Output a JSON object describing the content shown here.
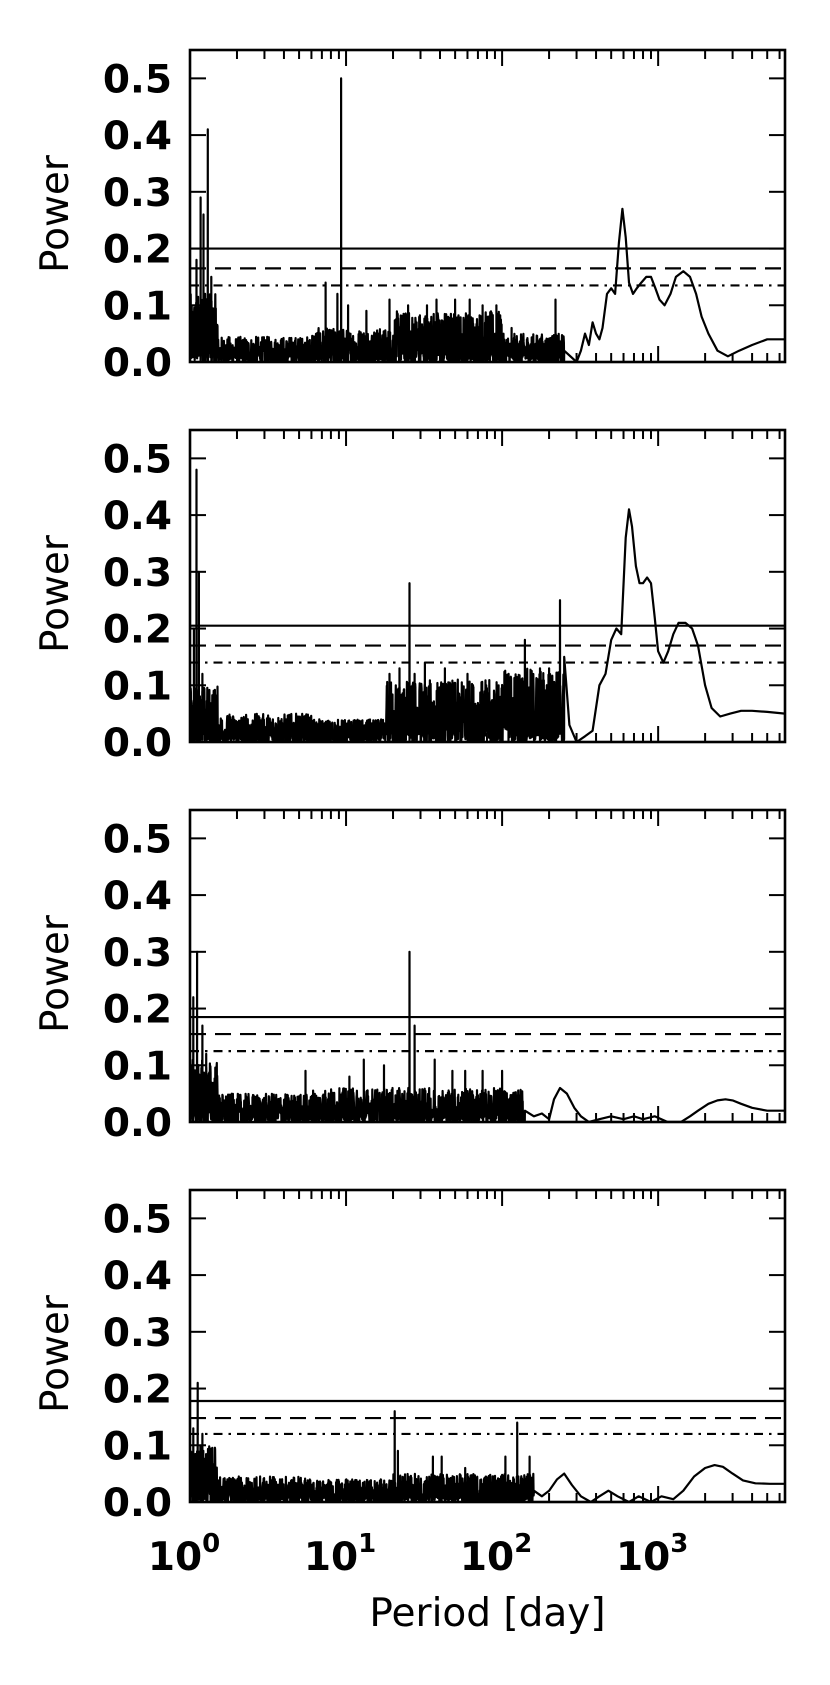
{
  "chart_data": [
    {
      "type": "line",
      "panel": 1,
      "ylabel": "Power",
      "xscale": "log",
      "xlim": [
        1,
        6500
      ],
      "ylim": [
        0,
        0.55
      ],
      "yticks": [
        "0.0",
        "0.1",
        "0.2",
        "0.3",
        "0.4",
        "0.5"
      ],
      "thresholds": [
        {
          "style": "solid",
          "value": 0.2
        },
        {
          "style": "dashed",
          "value": 0.165
        },
        {
          "style": "dashdot",
          "value": 0.135
        }
      ],
      "peaks": [
        {
          "x": 1.1,
          "y": 0.18
        },
        {
          "x": 1.17,
          "y": 0.29
        },
        {
          "x": 1.22,
          "y": 0.26
        },
        {
          "x": 1.25,
          "y": 0.12
        },
        {
          "x": 1.3,
          "y": 0.41
        },
        {
          "x": 1.37,
          "y": 0.15
        },
        {
          "x": 7.4,
          "y": 0.14
        },
        {
          "x": 8.8,
          "y": 0.12
        },
        {
          "x": 9.3,
          "y": 0.5
        },
        {
          "x": 10.3,
          "y": 0.1
        },
        {
          "x": 13.5,
          "y": 0.09
        },
        {
          "x": 19,
          "y": 0.11
        },
        {
          "x": 25,
          "y": 0.1
        },
        {
          "x": 33,
          "y": 0.1
        },
        {
          "x": 38,
          "y": 0.11
        },
        {
          "x": 50,
          "y": 0.11
        },
        {
          "x": 62,
          "y": 0.11
        },
        {
          "x": 75,
          "y": 0.1
        },
        {
          "x": 92,
          "y": 0.1
        },
        {
          "x": 115,
          "y": 0.06
        },
        {
          "x": 220,
          "y": 0.11
        }
      ],
      "curve": {
        "x": [
          250,
          300,
          320,
          340,
          360,
          380,
          400,
          420,
          440,
          470,
          500,
          530,
          560,
          590,
          620,
          650,
          690,
          730,
          780,
          840,
          900,
          960,
          1020,
          1100,
          1200,
          1300,
          1450,
          1600,
          1750,
          1900,
          2100,
          2400,
          2800,
          3300,
          4000,
          5000,
          6500
        ],
        "y": [
          0.02,
          0.0,
          0.02,
          0.05,
          0.03,
          0.07,
          0.05,
          0.04,
          0.06,
          0.12,
          0.13,
          0.12,
          0.21,
          0.27,
          0.22,
          0.14,
          0.12,
          0.13,
          0.14,
          0.15,
          0.15,
          0.13,
          0.11,
          0.1,
          0.12,
          0.15,
          0.16,
          0.15,
          0.12,
          0.08,
          0.05,
          0.02,
          0.01,
          0.02,
          0.03,
          0.04,
          0.04
        ]
      },
      "noise": [
        {
          "to": 1.5,
          "amp": 0.12
        },
        {
          "to": 6,
          "amp": 0.045
        },
        {
          "to": 20,
          "amp": 0.06
        },
        {
          "to": 100,
          "amp": 0.09
        },
        {
          "to": 250,
          "amp": 0.05
        }
      ]
    },
    {
      "type": "line",
      "panel": 2,
      "ylabel": "Power",
      "xscale": "log",
      "xlim": [
        1,
        6500
      ],
      "ylim": [
        0,
        0.55
      ],
      "yticks": [
        "0.0",
        "0.1",
        "0.2",
        "0.3",
        "0.4",
        "0.5"
      ],
      "thresholds": [
        {
          "style": "solid",
          "value": 0.205
        },
        {
          "style": "dashed",
          "value": 0.17
        },
        {
          "style": "dashdot",
          "value": 0.14
        }
      ],
      "peaks": [
        {
          "x": 1.06,
          "y": 0.2
        },
        {
          "x": 1.1,
          "y": 0.48
        },
        {
          "x": 1.14,
          "y": 0.3
        },
        {
          "x": 1.2,
          "y": 0.12
        },
        {
          "x": 19,
          "y": 0.12
        },
        {
          "x": 22,
          "y": 0.13
        },
        {
          "x": 25.5,
          "y": 0.28
        },
        {
          "x": 27.5,
          "y": 0.12
        },
        {
          "x": 32,
          "y": 0.14
        },
        {
          "x": 43,
          "y": 0.13
        },
        {
          "x": 60,
          "y": 0.12
        },
        {
          "x": 95,
          "y": 0.1
        },
        {
          "x": 110,
          "y": 0.12
        },
        {
          "x": 140,
          "y": 0.18
        },
        {
          "x": 175,
          "y": 0.13
        },
        {
          "x": 200,
          "y": 0.13
        },
        {
          "x": 235,
          "y": 0.25
        }
      ],
      "curve": {
        "x": [
          250,
          270,
          300,
          340,
          380,
          420,
          460,
          500,
          540,
          580,
          620,
          650,
          680,
          720,
          760,
          800,
          850,
          900,
          950,
          1000,
          1080,
          1160,
          1250,
          1350,
          1500,
          1650,
          1800,
          2000,
          2200,
          2500,
          2900,
          3400,
          4000,
          5000,
          6500
        ],
        "y": [
          0.15,
          0.03,
          0.0,
          0.01,
          0.02,
          0.1,
          0.12,
          0.18,
          0.2,
          0.19,
          0.36,
          0.41,
          0.38,
          0.31,
          0.28,
          0.28,
          0.29,
          0.28,
          0.22,
          0.16,
          0.14,
          0.16,
          0.19,
          0.21,
          0.21,
          0.2,
          0.17,
          0.1,
          0.06,
          0.045,
          0.05,
          0.055,
          0.055,
          0.053,
          0.05
        ]
      },
      "noise": [
        {
          "to": 1.5,
          "amp": 0.1
        },
        {
          "to": 6,
          "amp": 0.05
        },
        {
          "to": 18,
          "amp": 0.04
        },
        {
          "to": 100,
          "amp": 0.11
        },
        {
          "to": 250,
          "amp": 0.13
        }
      ]
    },
    {
      "type": "line",
      "panel": 3,
      "ylabel": "Power",
      "xscale": "log",
      "xlim": [
        1,
        6500
      ],
      "ylim": [
        0,
        0.55
      ],
      "yticks": [
        "0.0",
        "0.1",
        "0.2",
        "0.3",
        "0.4",
        "0.5"
      ],
      "thresholds": [
        {
          "style": "solid",
          "value": 0.185
        },
        {
          "style": "dashed",
          "value": 0.155
        },
        {
          "style": "dashdot",
          "value": 0.125
        }
      ],
      "peaks": [
        {
          "x": 1.05,
          "y": 0.22
        },
        {
          "x": 1.11,
          "y": 0.3
        },
        {
          "x": 1.2,
          "y": 0.17
        },
        {
          "x": 1.27,
          "y": 0.12
        },
        {
          "x": 5.5,
          "y": 0.09
        },
        {
          "x": 10.5,
          "y": 0.08
        },
        {
          "x": 13,
          "y": 0.11
        },
        {
          "x": 17.5,
          "y": 0.1
        },
        {
          "x": 25.5,
          "y": 0.3
        },
        {
          "x": 27.5,
          "y": 0.17
        },
        {
          "x": 37,
          "y": 0.11
        },
        {
          "x": 48,
          "y": 0.09
        },
        {
          "x": 58,
          "y": 0.09
        },
        {
          "x": 75,
          "y": 0.09
        },
        {
          "x": 100,
          "y": 0.09
        }
      ],
      "curve": {
        "x": [
          140,
          160,
          180,
          200,
          215,
          235,
          260,
          290,
          320,
          360,
          420,
          500,
          600,
          700,
          800,
          950,
          1150,
          1400,
          1600,
          1800,
          2100,
          2400,
          2700,
          3000,
          3400,
          4000,
          5000,
          6500
        ],
        "y": [
          0.02,
          0.01,
          0.015,
          0.005,
          0.04,
          0.06,
          0.05,
          0.025,
          0.01,
          0.0,
          0.005,
          0.01,
          0.005,
          0.01,
          0.005,
          0.01,
          0.0,
          0.0,
          0.01,
          0.02,
          0.032,
          0.038,
          0.04,
          0.038,
          0.032,
          0.025,
          0.02,
          0.02
        ]
      },
      "noise": [
        {
          "to": 1.5,
          "amp": 0.11
        },
        {
          "to": 6,
          "amp": 0.05
        },
        {
          "to": 25,
          "amp": 0.06
        },
        {
          "to": 140,
          "amp": 0.06
        }
      ]
    },
    {
      "type": "line",
      "panel": 4,
      "ylabel": "Power",
      "xlabel": "Period [day]",
      "xscale": "log",
      "xlim": [
        1,
        6500
      ],
      "ylim": [
        0,
        0.55
      ],
      "xticks": [
        {
          "base": "10",
          "exp": "0"
        },
        {
          "base": "10",
          "exp": "1"
        },
        {
          "base": "10",
          "exp": "2"
        },
        {
          "base": "10",
          "exp": "3"
        }
      ],
      "yticks": [
        "0.0",
        "0.1",
        "0.2",
        "0.3",
        "0.4",
        "0.5"
      ],
      "thresholds": [
        {
          "style": "solid",
          "value": 0.178
        },
        {
          "style": "dashed",
          "value": 0.148
        },
        {
          "style": "dashdot",
          "value": 0.12
        }
      ],
      "peaks": [
        {
          "x": 1.05,
          "y": 0.13
        },
        {
          "x": 1.12,
          "y": 0.21
        },
        {
          "x": 1.2,
          "y": 0.12
        },
        {
          "x": 20.5,
          "y": 0.16
        },
        {
          "x": 21.5,
          "y": 0.09
        },
        {
          "x": 36,
          "y": 0.08
        },
        {
          "x": 41,
          "y": 0.08
        },
        {
          "x": 58,
          "y": 0.06
        },
        {
          "x": 105,
          "y": 0.08
        },
        {
          "x": 125,
          "y": 0.14
        },
        {
          "x": 150,
          "y": 0.08
        }
      ],
      "curve": {
        "x": [
          160,
          180,
          200,
          225,
          250,
          280,
          320,
          370,
          420,
          480,
          550,
          650,
          750,
          900,
          1050,
          1250,
          1450,
          1700,
          2000,
          2300,
          2600,
          3000,
          3500,
          4200,
          5200,
          6500
        ],
        "y": [
          0.02,
          0.01,
          0.02,
          0.04,
          0.05,
          0.03,
          0.01,
          0.0,
          0.01,
          0.02,
          0.01,
          0.0,
          0.01,
          0.0,
          0.01,
          0.005,
          0.02,
          0.045,
          0.06,
          0.065,
          0.062,
          0.05,
          0.038,
          0.033,
          0.032,
          0.032
        ]
      },
      "noise": [
        {
          "to": 1.5,
          "amp": 0.1
        },
        {
          "to": 6,
          "amp": 0.045
        },
        {
          "to": 20,
          "amp": 0.04
        },
        {
          "to": 160,
          "amp": 0.05
        }
      ]
    }
  ]
}
